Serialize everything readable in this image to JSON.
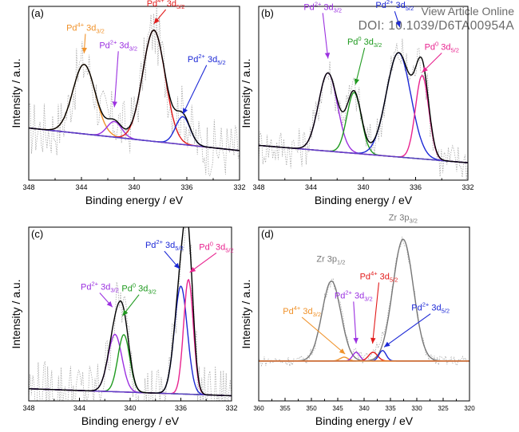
{
  "header": {
    "link_text": "View Article Online",
    "doi_text": "DOI: 10.1039/D6TA00954A"
  },
  "colors": {
    "raw": "#a8a8a8",
    "envelope": "#000000",
    "background_line": "#5b3fc9",
    "pd4": "#f0922a",
    "pd4_52": "#e21b1b",
    "pd2": "#9b30e0",
    "pd2_52": "#1c28d6",
    "pd0_32": "#1f9a1f",
    "pd0_52": "#e8238f",
    "zr": "#777777"
  },
  "chart_data": [
    {
      "id": "a",
      "type": "line",
      "panel_label": "(a)",
      "xlabel": "Binding energy / eV",
      "ylabel": "Intensity / a.u.",
      "xlim": [
        348,
        332
      ],
      "xticks": [
        348,
        344,
        340,
        336,
        332
      ],
      "ylim": [
        0,
        1
      ],
      "y_ticks_labeled": false,
      "baseline": {
        "x": [
          348,
          332
        ],
        "y": [
          0.3,
          0.17
        ]
      },
      "components": [
        {
          "name": "Pd4+ 3d3/2",
          "color_key": "pd4",
          "center": 343.8,
          "fwhm": 2.0,
          "height": 0.4
        },
        {
          "name": "Pd2+ 3d3/2",
          "color_key": "pd2",
          "center": 341.5,
          "fwhm": 1.3,
          "height": 0.09
        },
        {
          "name": "Pd4+ 3d5/2",
          "color_key": "pd4_52",
          "center": 338.5,
          "fwhm": 2.0,
          "height": 0.64
        },
        {
          "name": "Pd2+ 3d5/2",
          "color_key": "pd2_52",
          "center": 336.3,
          "fwhm": 1.3,
          "height": 0.16
        }
      ],
      "raw_noise": 0.17,
      "annotations": [
        {
          "parts": [
            "Pd",
            "4+",
            " 3d",
            "3/2"
          ],
          "color_key": "pd4",
          "x": 343.7,
          "y": 0.86,
          "arrow_to": [
            343.8,
            0.73
          ]
        },
        {
          "parts": [
            "Pd",
            "2+",
            " 3d",
            "3/2"
          ],
          "color_key": "pd2",
          "x": 341.2,
          "y": 0.76,
          "arrow_to": [
            341.5,
            0.42
          ]
        },
        {
          "parts": [
            "Pd",
            "4+",
            " 3d",
            "5/2"
          ],
          "color_key": "pd4_52",
          "x": 337.6,
          "y": 1.0,
          "arrow_to": [
            338.5,
            0.9
          ]
        },
        {
          "parts": [
            "Pd",
            "2+",
            " 3d",
            "5/2"
          ],
          "color_key": "pd2_52",
          "x": 334.5,
          "y": 0.68,
          "arrow_to": [
            336.3,
            0.38
          ]
        }
      ]
    },
    {
      "id": "b",
      "type": "line",
      "panel_label": "(b)",
      "xlabel": "Binding energy / eV",
      "ylabel": "Intensity / a.u.",
      "xlim": [
        348,
        332
      ],
      "xticks": [
        348,
        344,
        340,
        336,
        332
      ],
      "ylim": [
        0,
        1
      ],
      "y_ticks_labeled": false,
      "baseline": {
        "x": [
          348,
          332
        ],
        "y": [
          0.2,
          0.1
        ]
      },
      "components": [
        {
          "name": "Pd2+ 3d3/2",
          "color_key": "pd2",
          "center": 342.7,
          "fwhm": 1.7,
          "height": 0.45
        },
        {
          "name": "Pd0 3d3/2",
          "color_key": "pd0_32",
          "center": 340.7,
          "fwhm": 1.3,
          "height": 0.35
        },
        {
          "name": "Pd2+ 3d5/2",
          "color_key": "pd2_52",
          "center": 337.3,
          "fwhm": 2.2,
          "height": 0.6
        },
        {
          "name": "Pd0 3d5/2",
          "color_key": "pd0_52",
          "center": 335.5,
          "fwhm": 1.2,
          "height": 0.48
        }
      ],
      "raw_noise": 0.12,
      "annotations": [
        {
          "parts": [
            "Pd",
            "2+",
            " 3d",
            "3/2"
          ],
          "color_key": "pd2",
          "x": 343.1,
          "y": 0.98,
          "arrow_to": [
            342.7,
            0.7
          ]
        },
        {
          "parts": [
            "Pd",
            "0",
            " 3d",
            "3/2"
          ],
          "color_key": "pd0_32",
          "x": 339.9,
          "y": 0.78,
          "arrow_to": [
            340.6,
            0.55
          ]
        },
        {
          "parts": [
            "Pd",
            "2+",
            " 3d",
            "5/2"
          ],
          "color_key": "pd2_52",
          "x": 337.6,
          "y": 0.99,
          "arrow_to": [
            337.2,
            0.88
          ]
        },
        {
          "parts": [
            "Pd",
            "0",
            " 3d",
            "5/2"
          ],
          "color_key": "pd0_52",
          "x": 334.0,
          "y": 0.75,
          "arrow_to": [
            335.5,
            0.62
          ]
        }
      ]
    },
    {
      "id": "c",
      "type": "line",
      "panel_label": "(c)",
      "xlabel": "Binding energy / eV",
      "ylabel": "Intensity / a.u.",
      "xlim": [
        348,
        332
      ],
      "xticks": [
        348,
        344,
        340,
        336,
        332
      ],
      "ylim": [
        0,
        1
      ],
      "y_ticks_labeled": false,
      "baseline": {
        "x": [
          348,
          332
        ],
        "y": [
          0.07,
          0.03
        ]
      },
      "components": [
        {
          "name": "Pd2+ 3d3/2",
          "color_key": "pd2",
          "center": 341.2,
          "fwhm": 1.3,
          "height": 0.33
        },
        {
          "name": "Pd0 3d3/2",
          "color_key": "pd0_32",
          "center": 340.5,
          "fwhm": 1.1,
          "height": 0.33
        },
        {
          "name": "Pd2+ 3d5/2",
          "color_key": "pd2_52",
          "center": 336.0,
          "fwhm": 1.2,
          "height": 0.62
        },
        {
          "name": "Pd0 3d5/2",
          "color_key": "pd0_52",
          "center": 335.4,
          "fwhm": 0.9,
          "height": 0.66
        }
      ],
      "raw_noise": 0.17,
      "annotations": [
        {
          "parts": [
            "Pd",
            "2+",
            " 3d",
            "3/2"
          ],
          "color_key": "pd2",
          "x": 342.4,
          "y": 0.64,
          "arrow_to": [
            341.4,
            0.54
          ]
        },
        {
          "parts": [
            "Pd",
            "0",
            " 3d",
            "3/2"
          ],
          "color_key": "pd0_32",
          "x": 339.3,
          "y": 0.63,
          "arrow_to": [
            340.6,
            0.49
          ]
        },
        {
          "parts": [
            "Pd",
            "2+",
            " 3d",
            "5/2"
          ],
          "color_key": "pd2_52",
          "x": 337.3,
          "y": 0.88,
          "arrow_to": [
            336.1,
            0.76
          ]
        },
        {
          "parts": [
            "Pd",
            "0",
            " 3d",
            "5/2"
          ],
          "color_key": "pd0_52",
          "x": 333.2,
          "y": 0.87,
          "arrow_to": [
            335.3,
            0.74
          ]
        }
      ]
    },
    {
      "id": "d",
      "type": "line",
      "panel_label": "(d)",
      "xlabel": "Binding energy / eV",
      "ylabel": "Intensity / a.u.",
      "xlim": [
        360,
        320
      ],
      "xticks": [
        360,
        355,
        350,
        345,
        340,
        335,
        330,
        325,
        320
      ],
      "ylim": [
        0,
        1
      ],
      "y_ticks_labeled": false,
      "baseline": {
        "x": [
          360,
          320
        ],
        "y": [
          0.23,
          0.23
        ]
      },
      "components": [
        {
          "name": "Zr 3p1/2",
          "color_key": "zr",
          "center": 346.2,
          "fwhm": 4.2,
          "height": 0.46
        },
        {
          "name": "Zr 3p3/2",
          "color_key": "zr",
          "center": 332.6,
          "fwhm": 4.6,
          "height": 0.7
        },
        {
          "name": "Pd4+ 3d3/2",
          "color_key": "pd4",
          "center": 343.8,
          "fwhm": 1.8,
          "height": 0.022
        },
        {
          "name": "Pd2+ 3d3/2",
          "color_key": "pd2",
          "center": 341.5,
          "fwhm": 1.6,
          "height": 0.05
        },
        {
          "name": "Pd4+ 3d5/2",
          "color_key": "pd4_52",
          "center": 338.3,
          "fwhm": 2.0,
          "height": 0.05
        },
        {
          "name": "Pd2+ 3d5/2",
          "color_key": "pd2_52",
          "center": 336.5,
          "fwhm": 1.6,
          "height": 0.06
        }
      ],
      "raw_noise": 0.03,
      "annotations": [
        {
          "parts": [
            "Zr 3p",
            "",
            "",
            "1/2"
          ],
          "color_key": "zr",
          "x": 346.3,
          "y": 0.8,
          "arrow_to": null
        },
        {
          "parts": [
            "Zr 3p",
            "",
            "",
            "3/2"
          ],
          "color_key": "zr",
          "x": 332.6,
          "y": 1.04,
          "arrow_to": null
        },
        {
          "parts": [
            "Pd",
            "4+",
            " 3d",
            "3/2"
          ],
          "color_key": "pd4",
          "x": 351.8,
          "y": 0.5,
          "arrow_to": [
            343.6,
            0.27
          ]
        },
        {
          "parts": [
            "Pd",
            "2+",
            " 3d",
            "3/2"
          ],
          "color_key": "pd2",
          "x": 342.0,
          "y": 0.59,
          "arrow_to": [
            341.5,
            0.33
          ]
        },
        {
          "parts": [
            "Pd",
            "4+",
            " 3d",
            "5/2"
          ],
          "color_key": "pd4_52",
          "x": 337.2,
          "y": 0.7,
          "arrow_to": [
            338.4,
            0.33
          ]
        },
        {
          "parts": [
            "Pd",
            "2+",
            " 3d",
            "5/2"
          ],
          "color_key": "pd2_52",
          "x": 327.4,
          "y": 0.52,
          "arrow_to": [
            336.2,
            0.31
          ]
        }
      ]
    }
  ]
}
